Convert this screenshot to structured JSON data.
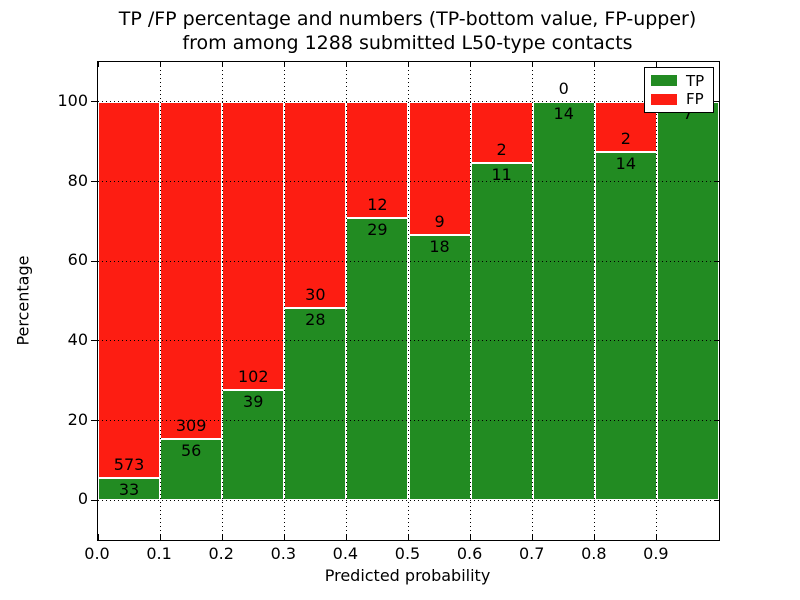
{
  "title": {
    "line1": "TP /FP percentage and numbers (TP-bottom value, FP-upper)",
    "line2": "from among 1288 submitted L50-type contacts"
  },
  "axes": {
    "xlabel": "Predicted probability",
    "ylabel": "Percentage",
    "xticklabels": [
      "0.0",
      "0.1",
      "0.2",
      "0.3",
      "0.4",
      "0.5",
      "0.6",
      "0.7",
      "0.8",
      "0.9"
    ],
    "yticklabels": [
      "0",
      "20",
      "40",
      "60",
      "80",
      "100"
    ]
  },
  "legend": {
    "items": [
      {
        "label": "TP",
        "color": "#228b22"
      },
      {
        "label": "FP",
        "color": "#fd1d12"
      }
    ],
    "position": "upper right"
  },
  "colors": {
    "tp": "#228b22",
    "fp": "#fd1d12",
    "grid": "#000000",
    "bar_edge": "#ffffff",
    "background": "#ffffff"
  },
  "chart_data": {
    "type": "bar",
    "stacked": true,
    "normalized": "each bar totals 100%",
    "title": "TP /FP percentage and numbers (TP-bottom value, FP-upper) from among 1288 submitted L50-type contacts",
    "xlabel": "Predicted probability",
    "ylabel": "Percentage",
    "bins": [
      "0.0-0.1",
      "0.1-0.2",
      "0.2-0.3",
      "0.3-0.4",
      "0.4-0.5",
      "0.5-0.6",
      "0.6-0.7",
      "0.7-0.8",
      "0.8-0.9",
      "0.9-1.0"
    ],
    "bin_starts": [
      0.0,
      0.1,
      0.2,
      0.3,
      0.4,
      0.5,
      0.6,
      0.7,
      0.8,
      0.9
    ],
    "series": [
      {
        "name": "TP",
        "color": "#228b22",
        "counts": [
          33,
          56,
          39,
          28,
          29,
          18,
          11,
          14,
          14,
          7
        ]
      },
      {
        "name": "FP",
        "color": "#fd1d12",
        "counts": [
          573,
          309,
          102,
          30,
          12,
          9,
          2,
          0,
          2,
          0
        ]
      }
    ],
    "tp_percent": [
      5.45,
      15.34,
      27.66,
      48.28,
      70.73,
      66.67,
      84.62,
      100.0,
      87.5,
      100.0
    ],
    "total_contacts": 1288,
    "ylim": [
      -10,
      110
    ],
    "xlim": [
      0,
      1
    ],
    "yticks": [
      0,
      20,
      40,
      60,
      80,
      100
    ],
    "grid": true,
    "legend_position": "upper right"
  }
}
